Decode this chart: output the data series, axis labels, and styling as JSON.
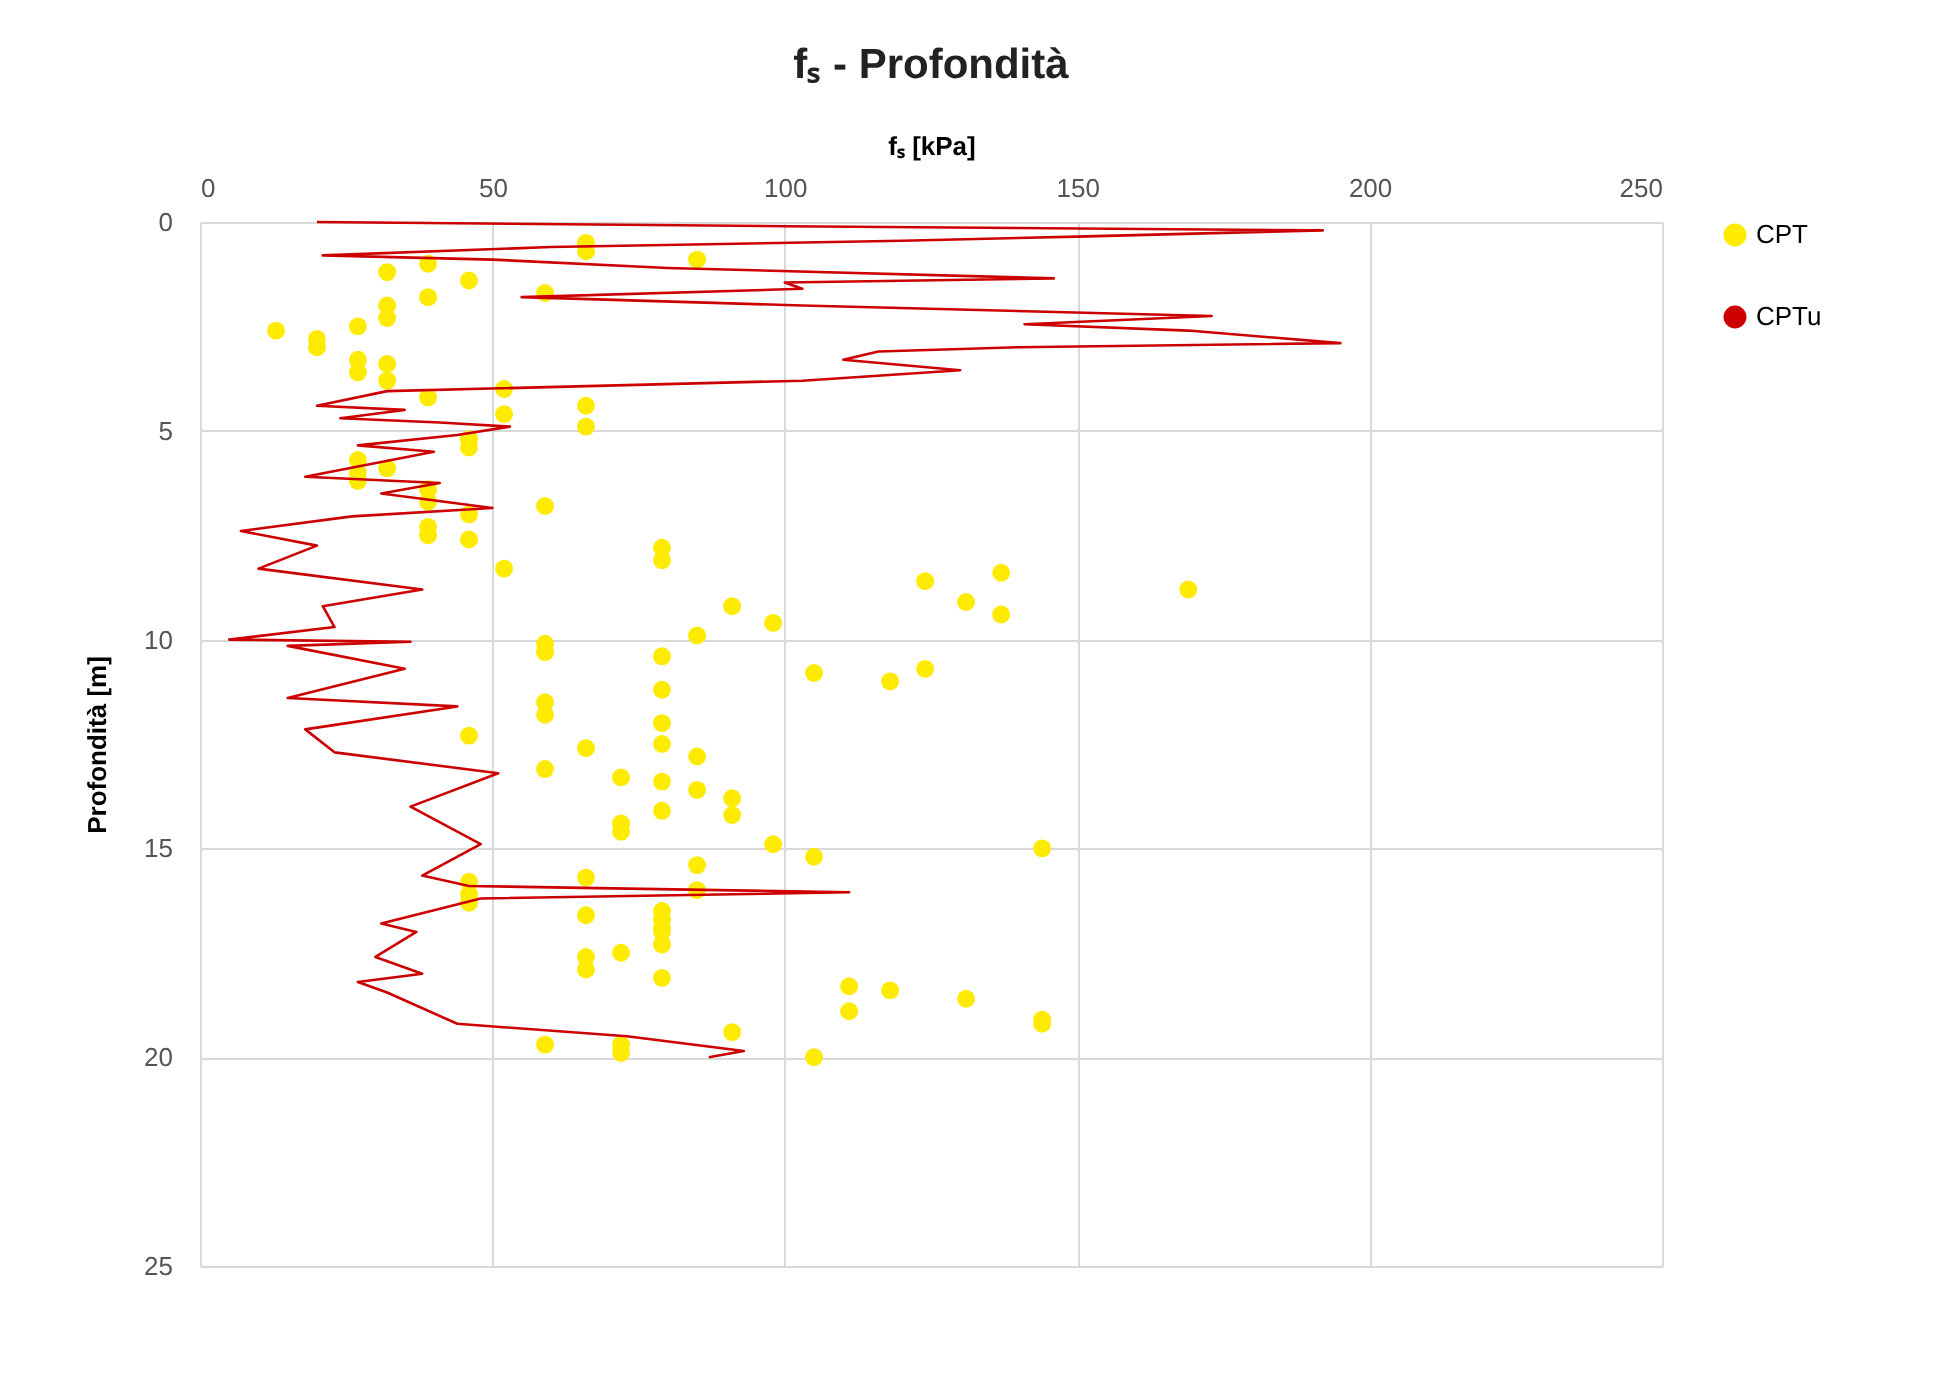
{
  "chart_data": {
    "type": "scatter",
    "title": "fₛ - Profondità",
    "xlabel": "fₛ [kPa]",
    "ylabel": "Profondità [m]",
    "xlim": [
      0,
      250
    ],
    "xticks": [
      0,
      50,
      100,
      150,
      200,
      250
    ],
    "ylim": [
      25,
      0
    ],
    "yticks": [
      0,
      5,
      10,
      15,
      20,
      25
    ],
    "grid": true,
    "legend": "right",
    "line_style": "solid",
    "series": [
      {
        "name": "CPT",
        "marker": "circle",
        "color": "#ffeb00",
        "x": [
          66,
          66,
          85,
          39,
          32,
          46,
          59,
          39,
          32,
          32,
          27,
          13,
          20,
          20,
          27,
          27,
          32,
          32,
          39,
          52,
          52,
          66,
          66,
          46,
          46,
          27,
          27,
          27,
          32,
          39,
          39,
          39,
          39,
          46,
          46,
          59,
          52,
          79,
          79,
          91,
          98,
          85,
          59,
          59,
          79,
          124,
          131,
          137,
          137,
          169,
          79,
          79,
          79,
          79,
          79,
          105,
          118,
          124,
          85,
          85,
          91,
          91,
          98,
          105,
          144,
          85,
          85,
          79,
          79,
          79,
          79,
          111,
          111,
          118,
          131,
          144,
          144,
          91,
          105,
          46,
          59,
          59,
          59,
          66,
          72,
          66,
          46,
          46,
          46,
          66,
          66,
          66,
          72,
          59,
          72,
          72,
          79,
          79,
          72,
          72
        ],
        "values": [
          0.5,
          0.7,
          0.9,
          1.0,
          1.2,
          1.4,
          1.7,
          1.8,
          2.0,
          2.3,
          2.5,
          2.6,
          2.8,
          3.0,
          3.3,
          3.6,
          3.4,
          3.8,
          4.2,
          4.0,
          4.6,
          4.4,
          4.9,
          5.2,
          5.4,
          5.7,
          6.0,
          6.2,
          5.9,
          6.4,
          6.7,
          7.3,
          7.5,
          7.0,
          7.6,
          6.8,
          8.3,
          7.8,
          8.1,
          9.2,
          9.6,
          9.9,
          10.1,
          10.3,
          10.4,
          8.6,
          9.1,
          8.4,
          9.4,
          8.8,
          11.2,
          12.0,
          12.5,
          13.4,
          14.1,
          10.8,
          11.0,
          10.7,
          12.8,
          13.6,
          13.8,
          14.2,
          14.9,
          15.2,
          15.0,
          15.4,
          16.0,
          16.5,
          16.9,
          17.3,
          18.1,
          18.3,
          18.9,
          18.4,
          18.6,
          19.1,
          19.2,
          19.4,
          20.0,
          12.3,
          11.5,
          11.8,
          13.1,
          12.6,
          13.3,
          15.7,
          15.8,
          16.1,
          16.3,
          16.6,
          17.6,
          17.9,
          17.5,
          19.7,
          19.7,
          19.9,
          16.7,
          17.0,
          14.4,
          14.6
        ]
      },
      {
        "name": "CPTu",
        "type": "line",
        "marker": "none",
        "color": "#cc0000",
        "x": [
          20,
          100,
          192,
          150,
          120,
          60,
          21,
          50,
          80,
          146,
          100,
          103,
          55,
          103,
          173,
          141,
          169,
          195,
          140,
          116,
          110,
          130,
          103,
          32,
          20,
          35,
          24,
          41,
          53,
          44,
          27,
          40,
          18,
          41,
          31,
          50,
          26,
          7,
          20,
          10,
          38,
          21,
          23,
          5,
          36,
          15,
          35,
          15,
          44,
          18,
          23,
          51,
          36,
          48,
          38,
          46,
          111,
          48,
          31,
          37,
          30,
          38,
          27,
          32,
          44,
          73,
          93,
          87
        ],
        "values": [
          0.0,
          0.1,
          0.2,
          0.35,
          0.45,
          0.6,
          0.8,
          0.9,
          1.1,
          1.35,
          1.45,
          1.6,
          1.8,
          2.0,
          2.25,
          2.45,
          2.6,
          2.9,
          3.0,
          3.1,
          3.3,
          3.55,
          3.8,
          4.05,
          4.4,
          4.5,
          4.7,
          4.8,
          4.9,
          5.1,
          5.35,
          5.5,
          6.1,
          6.25,
          6.5,
          6.85,
          7.05,
          7.4,
          7.75,
          8.3,
          8.8,
          9.2,
          9.7,
          10.0,
          10.05,
          10.15,
          10.7,
          11.4,
          11.6,
          12.15,
          12.7,
          13.2,
          14.0,
          14.9,
          15.65,
          15.9,
          16.05,
          16.2,
          16.8,
          17.0,
          17.6,
          18.0,
          18.2,
          18.45,
          19.2,
          19.5,
          19.85,
          20.0
        ]
      }
    ]
  }
}
